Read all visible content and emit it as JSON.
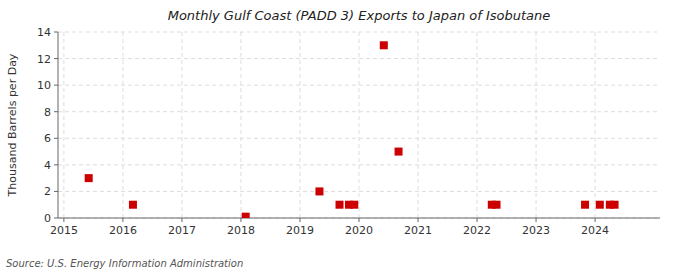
{
  "chart_data": {
    "type": "scatter",
    "title": "Monthly Gulf Coast (PADD 3) Exports to Japan of Isobutane",
    "ylabel": "Thousand Barrels per Day",
    "annotations": [
      "Source: U.S. Energy Information Administration"
    ],
    "x": [
      2015.42,
      2016.17,
      2018.08,
      2019.33,
      2019.67,
      2019.83,
      2019.92,
      2020.42,
      2020.67,
      2022.25,
      2022.33,
      2023.83,
      2024.08,
      2024.25,
      2024.33
    ],
    "values": [
      3,
      1,
      0.1,
      2,
      1,
      1,
      1,
      13,
      5,
      1,
      1,
      1,
      1,
      1,
      1
    ],
    "color": "#cc0000",
    "marker": "square",
    "xlim": [
      2014.9,
      2025.1
    ],
    "xticks": [
      2015,
      2016,
      2017,
      2018,
      2019,
      2020,
      2021,
      2022,
      2023,
      2024
    ],
    "ylim": [
      0,
      14
    ],
    "yticks": [
      0,
      2,
      4,
      6,
      8,
      10,
      12,
      14
    ],
    "grid": true
  }
}
